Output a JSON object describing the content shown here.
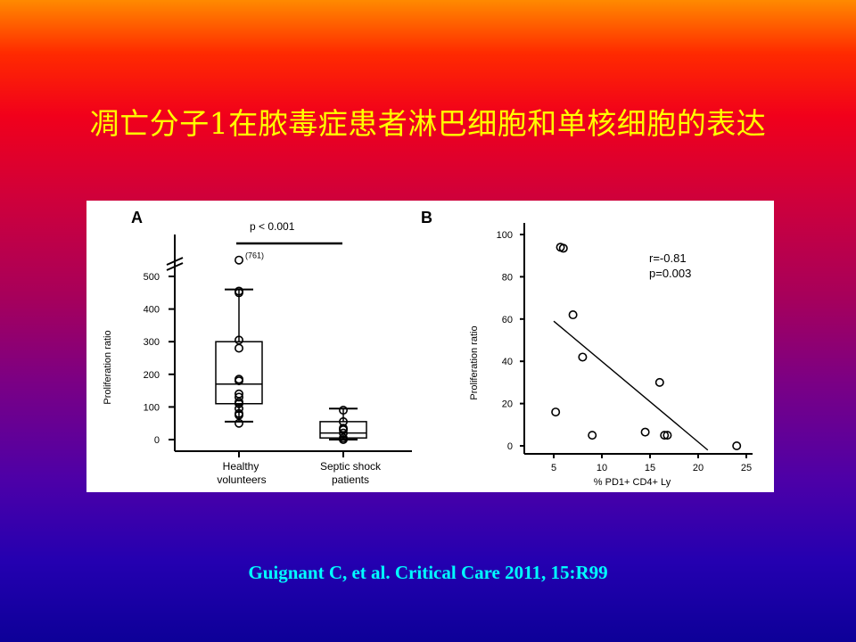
{
  "slide": {
    "title": "凋亡分子1在脓毒症患者淋巴细胞和单核细胞的表达",
    "citation": "Guignant C, et al. Critical Care 2011, 15:R99"
  },
  "chart_data": [
    {
      "panel": "A",
      "type": "box",
      "ylabel": "Proliferation ratio",
      "yticks": [
        0,
        100,
        200,
        300,
        400,
        500
      ],
      "ylim": [
        0,
        550
      ],
      "axis_break": true,
      "significance": "p < 0.001",
      "groups": [
        {
          "name_line1": "Healthy",
          "name_line2": "volunteers",
          "box": {
            "min": 55,
            "q1": 110,
            "median": 170,
            "q3": 300,
            "max": 460
          },
          "points": [
            50,
            75,
            80,
            95,
            110,
            115,
            130,
            140,
            180,
            185,
            280,
            305,
            450,
            455
          ],
          "outlier": {
            "plotted_at": 550,
            "label": "(761)"
          }
        },
        {
          "name_line1": "Septic shock",
          "name_line2": "patients",
          "box": {
            "min": 0,
            "q1": 5,
            "median": 20,
            "q3": 55,
            "max": 95
          },
          "points": [
            0,
            5,
            20,
            30,
            35,
            55,
            90
          ]
        }
      ]
    },
    {
      "panel": "B",
      "type": "scatter",
      "xlabel": "% PD1+ CD4+ Ly",
      "ylabel": "Proliferation ratio",
      "xticks": [
        5,
        10,
        15,
        20,
        25
      ],
      "yticks": [
        0,
        20,
        40,
        60,
        80,
        100
      ],
      "xlim": [
        3,
        25.5
      ],
      "ylim": [
        -3,
        103
      ],
      "points": [
        {
          "x": 5.7,
          "y": 94
        },
        {
          "x": 6.0,
          "y": 93.5
        },
        {
          "x": 7.0,
          "y": 62
        },
        {
          "x": 8.0,
          "y": 42
        },
        {
          "x": 5.2,
          "y": 16
        },
        {
          "x": 9.0,
          "y": 5
        },
        {
          "x": 14.5,
          "y": 6.5
        },
        {
          "x": 16.0,
          "y": 30
        },
        {
          "x": 16.5,
          "y": 5
        },
        {
          "x": 16.8,
          "y": 5
        },
        {
          "x": 24.0,
          "y": 0
        }
      ],
      "fit_line": {
        "x1": 5.0,
        "y1": 59,
        "x2": 21.0,
        "y2": -2
      },
      "annotation_r": "r=-0.81",
      "annotation_p": "p=0.003"
    }
  ]
}
